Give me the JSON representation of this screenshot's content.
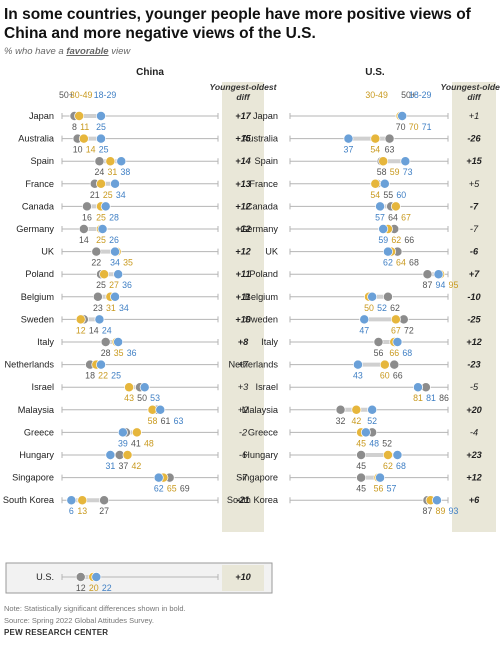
{
  "title": "In some countries, younger people have more positive views of China and more negative views of the U.S.",
  "subtitle": {
    "prefix": "% who have a ",
    "emphasis": "favorable",
    "suffix": " view"
  },
  "note": "Note: Statistically significant differences shown in bold.",
  "source": "Source: Spring 2022 Global Attitudes Survey.",
  "org": "PEW RESEARCH CENTER",
  "colors": {
    "ages_50_plus": "#8c8c8c",
    "ages_30_49": "#e6b63c",
    "ages_18_29": "#6aa0d8",
    "diff_bg": "#e9e7d8"
  },
  "chart_data": [
    {
      "type": "dot_plot",
      "title": "China",
      "xlim": [
        0,
        100
      ],
      "series_names": [
        "50+",
        "30-49",
        "18-29"
      ],
      "diff_header": "Youngest-oldest diff",
      "categories": [
        "Japan",
        "Australia",
        "Spain",
        "France",
        "Canada",
        "Germany",
        "UK",
        "Poland",
        "Belgium",
        "Sweden",
        "Italy",
        "Netherlands",
        "Israel",
        "Malaysia",
        "Greece",
        "Hungary",
        "Singapore",
        "South Korea",
        "U.S."
      ],
      "values": [
        {
          "50+": 8,
          "30-49": 11,
          "18-29": 25,
          "diff": "+17",
          "bold": true
        },
        {
          "50+": 10,
          "30-49": 14,
          "18-29": 25,
          "diff": "+15",
          "bold": true
        },
        {
          "50+": 24,
          "30-49": 31,
          "18-29": 38,
          "diff": "+14",
          "bold": true
        },
        {
          "50+": 21,
          "30-49": 25,
          "18-29": 34,
          "diff": "+13",
          "bold": true
        },
        {
          "50+": 16,
          "30-49": 25,
          "18-29": 28,
          "diff": "+12",
          "bold": true
        },
        {
          "50+": 14,
          "30-49": 25,
          "18-29": 26,
          "diff": "+12",
          "bold": true
        },
        {
          "50+": 22,
          "30-49": 35,
          "18-29": 34,
          "diff": "+12",
          "bold": true
        },
        {
          "50+": 25,
          "30-49": 27,
          "18-29": 36,
          "diff": "+11",
          "bold": true
        },
        {
          "50+": 23,
          "30-49": 31,
          "18-29": 34,
          "diff": "+11",
          "bold": true
        },
        {
          "50+": 14,
          "30-49": 12,
          "18-29": 24,
          "diff": "+10",
          "bold": true
        },
        {
          "50+": 28,
          "30-49": 35,
          "18-29": 36,
          "diff": "+8",
          "bold": true
        },
        {
          "50+": 18,
          "30-49": 22,
          "18-29": 25,
          "diff": "+7",
          "bold": false
        },
        {
          "50+": 50,
          "30-49": 43,
          "18-29": 53,
          "diff": "+3",
          "bold": false
        },
        {
          "50+": 61,
          "30-49": 58,
          "18-29": 63,
          "diff": "+2",
          "bold": false
        },
        {
          "50+": 41,
          "30-49": 48,
          "18-29": 39,
          "diff": "-2",
          "bold": false
        },
        {
          "50+": 37,
          "30-49": 42,
          "18-29": 31,
          "diff": "-6",
          "bold": false
        },
        {
          "50+": 69,
          "30-49": 65,
          "18-29": 62,
          "diff": "-7",
          "bold": false
        },
        {
          "50+": 27,
          "30-49": 13,
          "18-29": 6,
          "diff": "-21",
          "bold": true
        },
        {
          "50+": 12,
          "30-49": 20,
          "18-29": 22,
          "diff": "+10",
          "bold": true
        }
      ]
    },
    {
      "type": "dot_plot",
      "title": "U.S.",
      "xlim": [
        0,
        100
      ],
      "series_names": [
        "50+",
        "30-49",
        "18-29"
      ],
      "diff_header": "Youngest-oldest diff",
      "categories": [
        "Japan",
        "Australia",
        "Spain",
        "France",
        "Canada",
        "Germany",
        "UK",
        "Poland",
        "Belgium",
        "Sweden",
        "Italy",
        "Netherlands",
        "Israel",
        "Malaysia",
        "Greece",
        "Hungary",
        "Singapore",
        "South Korea"
      ],
      "values": [
        {
          "50+": 70,
          "30-49": 70,
          "18-29": 71,
          "diff": "+1",
          "bold": false
        },
        {
          "50+": 63,
          "30-49": 54,
          "18-29": 37,
          "diff": "-26",
          "bold": true
        },
        {
          "50+": 58,
          "30-49": 59,
          "18-29": 73,
          "diff": "+15",
          "bold": true
        },
        {
          "50+": 55,
          "30-49": 54,
          "18-29": 60,
          "diff": "+5",
          "bold": false
        },
        {
          "50+": 64,
          "30-49": 67,
          "18-29": 57,
          "diff": "-7",
          "bold": true
        },
        {
          "50+": 66,
          "30-49": 62,
          "18-29": 59,
          "diff": "-7",
          "bold": false
        },
        {
          "50+": 68,
          "30-49": 64,
          "18-29": 62,
          "diff": "-6",
          "bold": true
        },
        {
          "50+": 87,
          "30-49": 95,
          "18-29": 94,
          "diff": "+7",
          "bold": true
        },
        {
          "50+": 62,
          "30-49": 50,
          "18-29": 52,
          "diff": "-10",
          "bold": true
        },
        {
          "50+": 72,
          "30-49": 67,
          "18-29": 47,
          "diff": "-25",
          "bold": true
        },
        {
          "50+": 56,
          "30-49": 66,
          "18-29": 68,
          "diff": "+12",
          "bold": true
        },
        {
          "50+": 66,
          "30-49": 60,
          "18-29": 43,
          "diff": "-23",
          "bold": true
        },
        {
          "50+": 86,
          "30-49": 81,
          "18-29": 81,
          "diff": "-5",
          "bold": false
        },
        {
          "50+": 32,
          "30-49": 42,
          "18-29": 52,
          "diff": "+20",
          "bold": true
        },
        {
          "50+": 52,
          "30-49": 45,
          "18-29": 48,
          "diff": "-4",
          "bold": false
        },
        {
          "50+": 45,
          "30-49": 62,
          "18-29": 68,
          "diff": "+23",
          "bold": true
        },
        {
          "50+": 45,
          "30-49": 56,
          "18-29": 57,
          "diff": "+12",
          "bold": true
        },
        {
          "50+": 87,
          "30-49": 89,
          "18-29": 93,
          "diff": "+6",
          "bold": true
        }
      ]
    }
  ]
}
